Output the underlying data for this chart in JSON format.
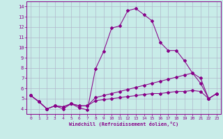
{
  "xlabel": "Windchill (Refroidissement éolien,°C)",
  "background_color": "#c8ece8",
  "grid_color": "#b0b8cc",
  "line_color": "#880088",
  "xlim": [
    -0.5,
    23.5
  ],
  "ylim": [
    3.5,
    14.5
  ],
  "xticks": [
    0,
    1,
    2,
    3,
    4,
    5,
    6,
    7,
    8,
    9,
    10,
    11,
    12,
    13,
    14,
    15,
    16,
    17,
    18,
    19,
    20,
    21,
    22,
    23
  ],
  "yticks": [
    4,
    5,
    6,
    7,
    8,
    9,
    10,
    11,
    12,
    13,
    14
  ],
  "line1_x": [
    0,
    1,
    2,
    3,
    4,
    5,
    6,
    7,
    8,
    9,
    10,
    11,
    12,
    13,
    14,
    15,
    16,
    17,
    18,
    19,
    20,
    21,
    22,
    23
  ],
  "line1_y": [
    5.3,
    4.7,
    4.0,
    4.3,
    4.0,
    4.5,
    4.1,
    3.9,
    7.9,
    9.6,
    11.9,
    12.1,
    13.6,
    13.8,
    13.2,
    12.6,
    10.5,
    9.7,
    9.7,
    8.7,
    7.5,
    6.5,
    5.0,
    5.5
  ],
  "line2_x": [
    0,
    1,
    2,
    3,
    4,
    5,
    6,
    7,
    8,
    9,
    10,
    11,
    12,
    13,
    14,
    15,
    16,
    17,
    18,
    19,
    20,
    21,
    22,
    23
  ],
  "line2_y": [
    5.3,
    4.7,
    4.0,
    4.3,
    4.2,
    4.5,
    4.3,
    4.3,
    5.1,
    5.3,
    5.5,
    5.7,
    5.9,
    6.1,
    6.3,
    6.5,
    6.7,
    6.9,
    7.1,
    7.3,
    7.5,
    7.0,
    5.0,
    5.5
  ],
  "line3_x": [
    0,
    1,
    2,
    3,
    4,
    5,
    6,
    7,
    8,
    9,
    10,
    11,
    12,
    13,
    14,
    15,
    16,
    17,
    18,
    19,
    20,
    21,
    22,
    23
  ],
  "line3_y": [
    5.3,
    4.7,
    4.0,
    4.3,
    4.2,
    4.5,
    4.3,
    4.3,
    4.8,
    4.9,
    5.0,
    5.1,
    5.2,
    5.3,
    5.4,
    5.5,
    5.5,
    5.6,
    5.7,
    5.7,
    5.8,
    5.7,
    5.0,
    5.5
  ]
}
